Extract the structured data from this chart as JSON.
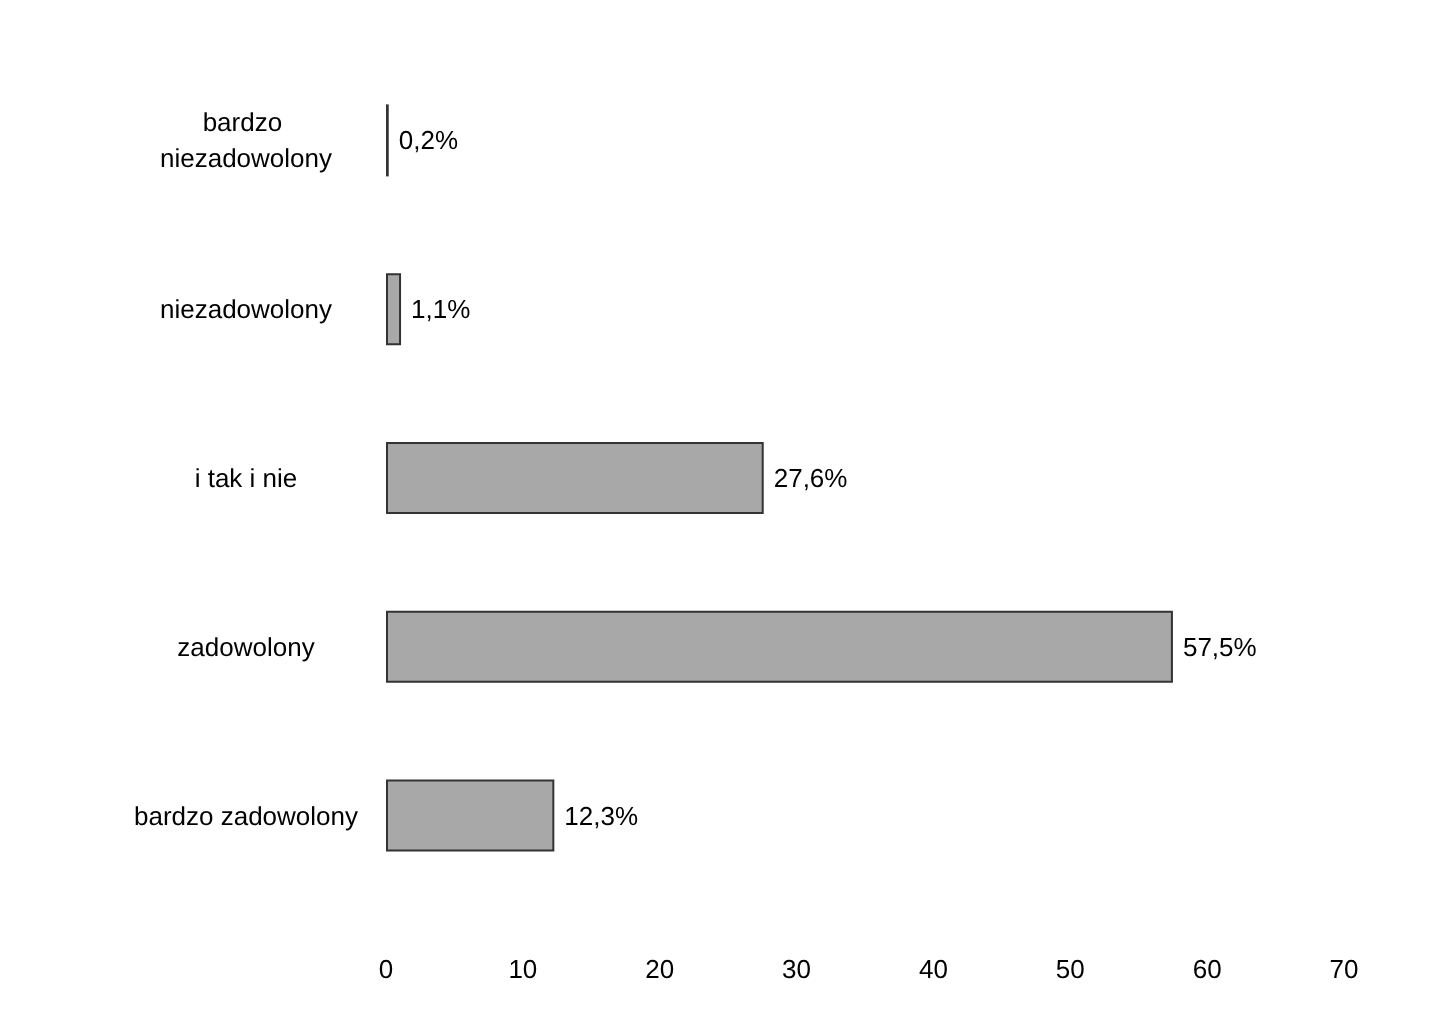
{
  "chart_data": {
    "type": "bar",
    "orientation": "horizontal",
    "categories": [
      "bardzo niezadowolony",
      "niezadowolony",
      "i tak i nie",
      "zadowolony",
      "bardzo zadowolony"
    ],
    "values": [
      0.2,
      1.1,
      27.6,
      57.5,
      12.3
    ],
    "value_labels": [
      "0,2%",
      "1,1%",
      "27,6%",
      "57,5%",
      "12,3%"
    ],
    "color": "#a8a8a8",
    "xlim": [
      0,
      70
    ],
    "xticks": [
      0,
      10,
      20,
      30,
      40,
      50,
      60,
      70
    ],
    "grid": false
  }
}
